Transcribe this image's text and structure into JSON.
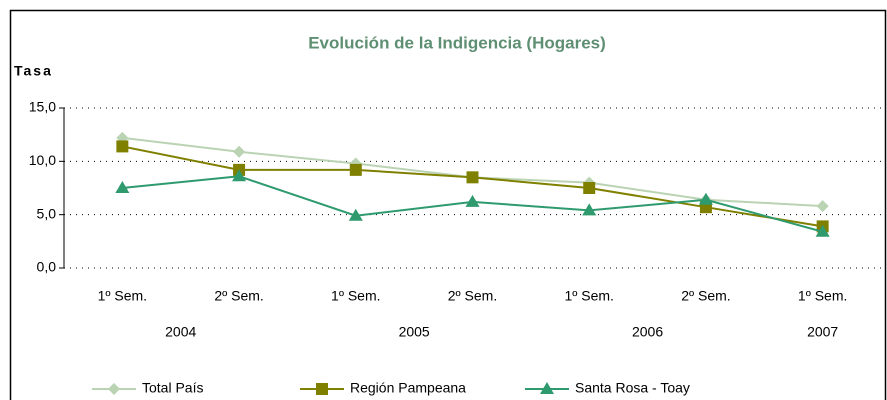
{
  "chart_data": {
    "type": "line",
    "title": "Evolución de la Indigencia (Hogares)",
    "y_label": "Tasa",
    "categories": [
      "1º Sem.",
      "2º Sem.",
      "1º Sem.",
      "2º Sem.",
      "1º Sem.",
      "2º Sem.",
      "1º Sem."
    ],
    "year_labels": [
      "2004",
      null,
      "2005",
      null,
      "2006",
      null,
      "2007"
    ],
    "series": [
      {
        "name": "Total País",
        "color": "#b9d3b3",
        "marker": "diamond",
        "values": [
          12.2,
          10.9,
          9.8,
          8.5,
          8.0,
          6.4,
          5.8
        ]
      },
      {
        "name": "Región Pampeana",
        "color": "#808000",
        "marker": "square",
        "values": [
          11.4,
          9.2,
          9.2,
          8.5,
          7.5,
          5.7,
          3.9
        ]
      },
      {
        "name": "Santa Rosa - Toay",
        "color": "#2e9a6e",
        "marker": "triangle",
        "values": [
          7.5,
          8.6,
          4.9,
          6.2,
          5.4,
          6.4,
          3.4
        ]
      }
    ],
    "ylim": [
      0,
      15
    ],
    "yticks": [
      {
        "value": 0,
        "label": "0,0"
      },
      {
        "value": 5,
        "label": "5,0"
      },
      {
        "value": 10,
        "label": "10,0"
      },
      {
        "value": 15,
        "label": "15,0"
      }
    ],
    "grid": true,
    "legend": "bottom"
  }
}
